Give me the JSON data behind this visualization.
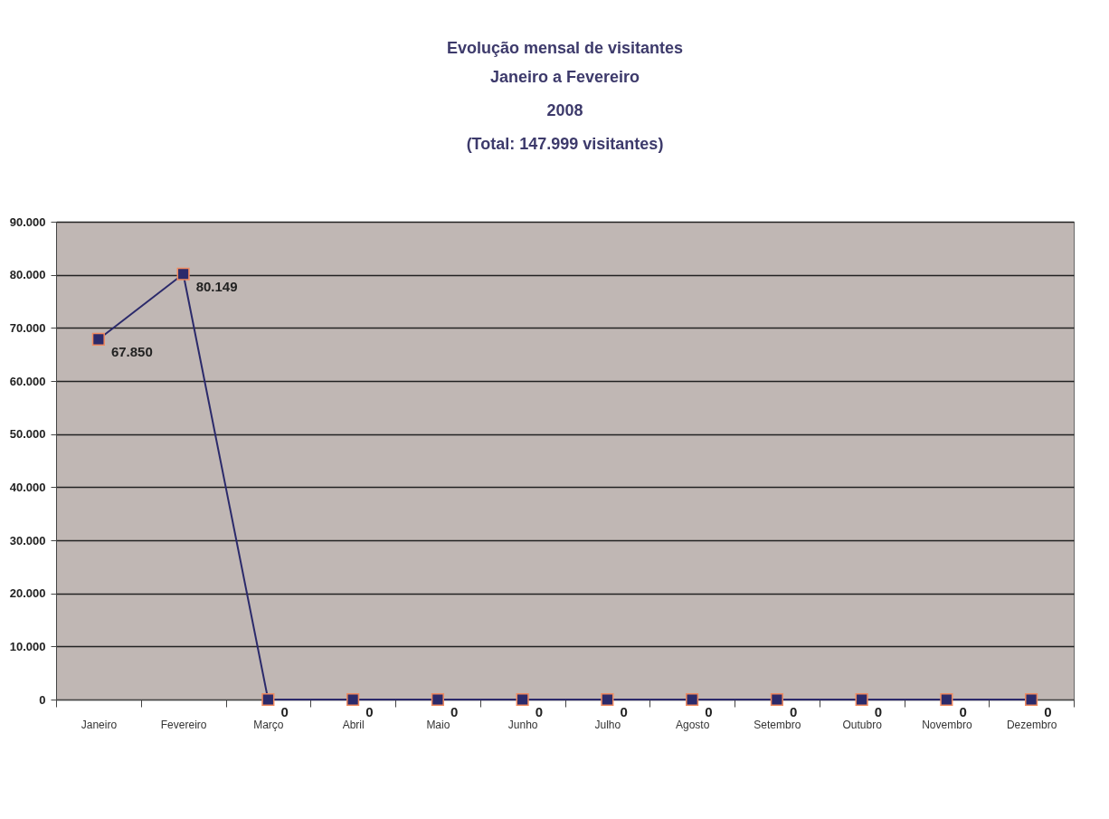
{
  "chart_data": {
    "type": "line",
    "title": "Evolução mensal de visitantes",
    "subtitle": "Janeiro a Fevereiro\n2008\n(Total: 147.999 visitantes)",
    "categories": [
      "Janeiro",
      "Fevereiro",
      "Março",
      "Abril",
      "Maio",
      "Junho",
      "Julho",
      "Agosto",
      "Setembro",
      "Outubro",
      "Novembro",
      "Dezembro"
    ],
    "series": [
      {
        "color": "#2b2a6b",
        "values": [
          67850,
          80149,
          0,
          0,
          0,
          0,
          0,
          0,
          0,
          0,
          0,
          0
        ],
        "value_labels": [
          "67.850",
          "80.149",
          "0",
          "0",
          "0",
          "0",
          "0",
          "0",
          "0",
          "0",
          "0",
          "0"
        ]
      }
    ],
    "ylim": [
      0,
      90000
    ],
    "yticks": [
      0,
      {
        "value": 10000,
        "label": "10.000"
      },
      {
        "value": 20000,
        "label": "20.000"
      },
      {
        "value": 30000,
        "label": "30.000"
      },
      {
        "value": 40000,
        "label": "40.000"
      },
      {
        "value": 50000,
        "label": "50.000"
      },
      {
        "value": 60000,
        "label": "60.000"
      },
      {
        "value": 70000,
        "label": "70.000"
      },
      {
        "value": 80000,
        "label": "80.000"
      },
      {
        "value": 90000,
        "label": "90.000"
      }
    ],
    "grid": "y",
    "marker": "square",
    "line_style": "solid"
  }
}
